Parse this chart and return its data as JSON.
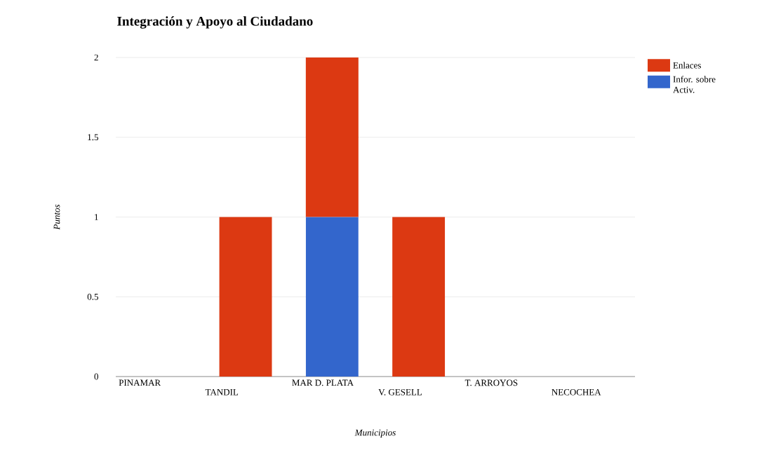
{
  "chart_data": {
    "type": "bar",
    "title": "Integración y Apoyo al Ciudadano",
    "xlabel": "Municipios",
    "ylabel": "Puntos",
    "categories": [
      "PINAMAR",
      "TANDIL",
      "MAR D. PLATA",
      "V. GESELL",
      "T. ARROYOS",
      "NECOCHEA"
    ],
    "stacked": true,
    "series": [
      {
        "name": "Infor. sobre Activ.",
        "color": "#3366cc",
        "values": [
          0,
          0,
          1,
          0,
          0,
          0
        ]
      },
      {
        "name": "Enlaces",
        "color": "#dc3912",
        "values": [
          0,
          1,
          1,
          1,
          0,
          0
        ]
      }
    ],
    "ylim": [
      0,
      2
    ],
    "yticks": [
      0,
      0.5,
      1,
      1.5,
      2
    ],
    "grid": "y",
    "legend": "right"
  }
}
